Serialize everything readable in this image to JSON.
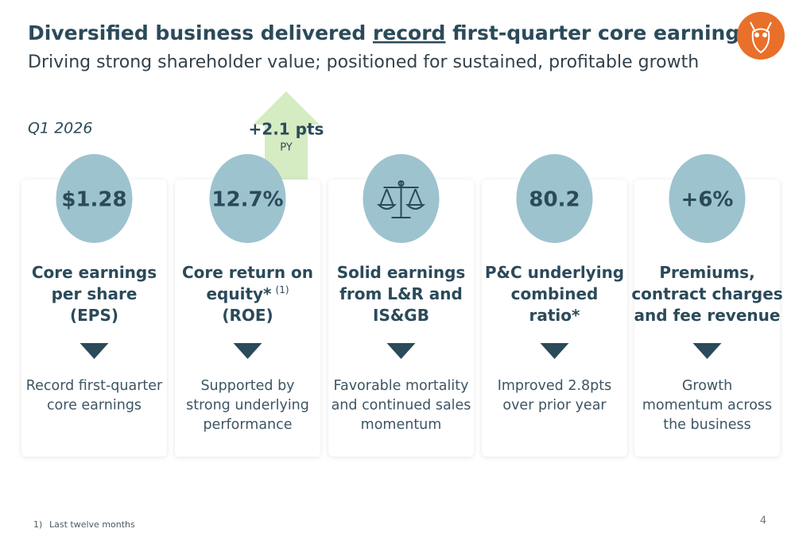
{
  "header": {
    "title_before": "Diversified business delivered ",
    "title_emphasis": "record",
    "title_after": " first-quarter core earnings",
    "subtitle": "Driving strong shareholder value; positioned for sustained, profitable growth"
  },
  "period": "Q1 2026",
  "callout": {
    "change": "+2.1 pts",
    "basis": "PY"
  },
  "cards": [
    {
      "value": "$1.28",
      "heading": [
        "Core earnings",
        "per share",
        "(EPS)"
      ],
      "description": [
        "Record first-quarter",
        "core earnings"
      ]
    },
    {
      "value": "12.7%",
      "heading": [
        "Core return on",
        "equity*",
        "(ROE)"
      ],
      "heading_note": "(1)",
      "description": [
        "Supported by",
        "strong underlying",
        "performance"
      ]
    },
    {
      "heading": [
        "Solid earnings",
        "from L&R and",
        "IS&GB"
      ],
      "description": [
        "Favorable mortality",
        "and continued sales",
        "momentum"
      ]
    },
    {
      "value": "80.2",
      "heading": [
        "P&C underlying",
        "combined",
        "ratio*"
      ],
      "description": [
        "Improved 2.8pts",
        "over prior year"
      ]
    },
    {
      "value": "+6%",
      "heading": [
        "Premiums,",
        "contract charges",
        "and fee revenue"
      ],
      "description": [
        "Growth",
        "momentum across",
        "the business"
      ]
    }
  ],
  "footnote": {
    "marker": "1)",
    "text": "Last twelve months"
  },
  "page_number": "4"
}
